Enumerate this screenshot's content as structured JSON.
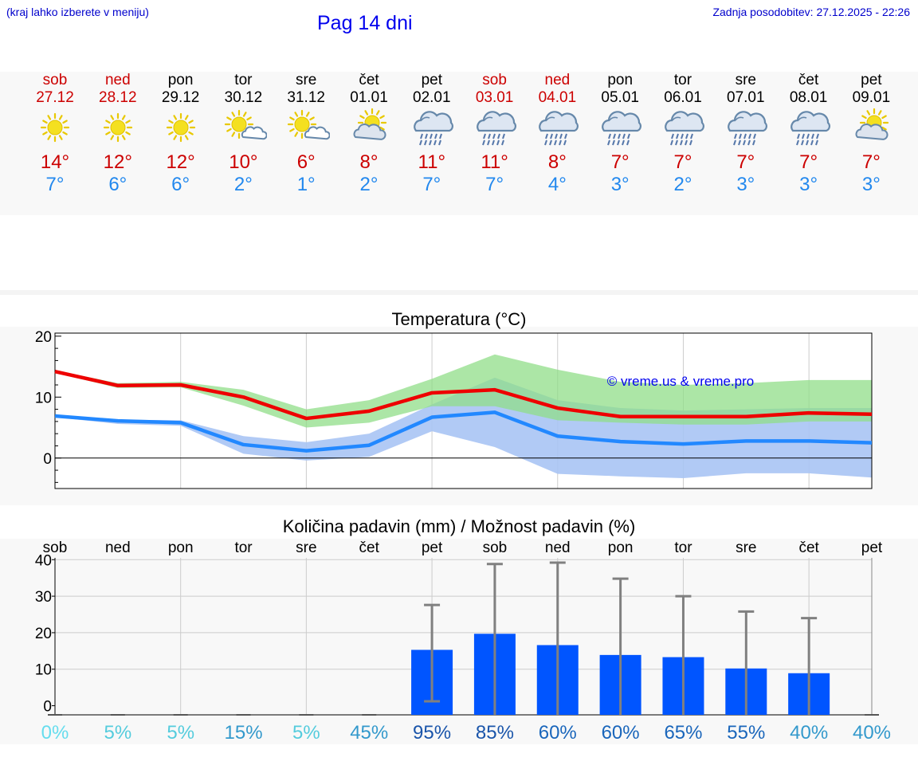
{
  "header": {
    "hint": "(kraj lahko izberete v meniju)",
    "title": "Pag 14 dni",
    "updated": "Zadnja posodobitev: 27.12.2025 - 22:26"
  },
  "days": [
    {
      "name": "sob",
      "date": "27.12",
      "weekend": true,
      "icon": "sun-icon",
      "tmax": "14°",
      "tmin": "7°"
    },
    {
      "name": "ned",
      "date": "28.12",
      "weekend": true,
      "icon": "sun-icon",
      "tmax": "12°",
      "tmin": "6°"
    },
    {
      "name": "pon",
      "date": "29.12",
      "weekend": false,
      "icon": "sun-icon",
      "tmax": "12°",
      "tmin": "6°"
    },
    {
      "name": "tor",
      "date": "30.12",
      "weekend": false,
      "icon": "sun-small-cloud-icon",
      "tmax": "10°",
      "tmin": "2°"
    },
    {
      "name": "sre",
      "date": "31.12",
      "weekend": false,
      "icon": "sun-small-cloud-icon",
      "tmax": "6°",
      "tmin": "1°"
    },
    {
      "name": "čet",
      "date": "01.01",
      "weekend": false,
      "icon": "sun-cloud-icon",
      "tmax": "8°",
      "tmin": "2°"
    },
    {
      "name": "pet",
      "date": "02.01",
      "weekend": false,
      "icon": "rain-cloud-icon",
      "tmax": "11°",
      "tmin": "7°"
    },
    {
      "name": "sob",
      "date": "03.01",
      "weekend": true,
      "icon": "rain-cloud-icon",
      "tmax": "11°",
      "tmin": "7°"
    },
    {
      "name": "ned",
      "date": "04.01",
      "weekend": true,
      "icon": "rain-cloud-icon",
      "tmax": "8°",
      "tmin": "4°"
    },
    {
      "name": "pon",
      "date": "05.01",
      "weekend": false,
      "icon": "rain-cloud-icon",
      "tmax": "7°",
      "tmin": "3°"
    },
    {
      "name": "tor",
      "date": "06.01",
      "weekend": false,
      "icon": "rain-cloud-icon",
      "tmax": "7°",
      "tmin": "2°"
    },
    {
      "name": "sre",
      "date": "07.01",
      "weekend": false,
      "icon": "rain-cloud-icon",
      "tmax": "7°",
      "tmin": "3°"
    },
    {
      "name": "čet",
      "date": "08.01",
      "weekend": false,
      "icon": "rain-cloud-icon",
      "tmax": "7°",
      "tmin": "3°"
    },
    {
      "name": "pet",
      "date": "09.01",
      "weekend": false,
      "icon": "sun-cloud-icon",
      "tmax": "7°",
      "tmin": "3°"
    }
  ],
  "colors": {
    "weekend": "#cc0000",
    "max_line": "#ee0000",
    "min_line": "#2288ff",
    "max_band": "#a8e6a0",
    "min_band": "#a8c4f4",
    "bar": "#0055ff",
    "whisker": "#808080",
    "sun": "#f4e020",
    "cloud": "#6688aa",
    "watermark": "#0000ee"
  },
  "chart_data": [
    {
      "type": "line",
      "title": "Temperatura (°C)",
      "watermark": "© vreme.us & vreme.pro",
      "ylim": [
        -5,
        20.5
      ],
      "yticks": [
        "20",
        "10",
        "0"
      ],
      "x": [
        0,
        1,
        2,
        3,
        4,
        5,
        6,
        7,
        8,
        9,
        10,
        11,
        12,
        13
      ],
      "series": [
        {
          "name": "max",
          "values": [
            14.2,
            11.9,
            12.0,
            10.0,
            6.5,
            7.7,
            10.7,
            11.2,
            8.2,
            6.8,
            6.8,
            6.8,
            7.4,
            7.2
          ],
          "band_low": [
            14.0,
            11.5,
            11.6,
            8.6,
            5.0,
            5.8,
            8.5,
            8.5,
            6.2,
            5.8,
            5.5,
            5.5,
            6.0,
            6.0
          ],
          "band_high": [
            14.4,
            12.3,
            12.5,
            11.2,
            8.0,
            9.5,
            13.0,
            17.0,
            14.5,
            12.5,
            12.0,
            12.3,
            12.8,
            12.8
          ]
        },
        {
          "name": "min",
          "values": [
            6.9,
            6.1,
            5.8,
            2.2,
            1.2,
            2.1,
            6.7,
            7.5,
            3.6,
            2.7,
            2.3,
            2.8,
            2.8,
            2.5
          ],
          "band_low": [
            6.7,
            5.6,
            5.3,
            0.7,
            -0.4,
            0.2,
            4.4,
            1.8,
            -2.6,
            -3.0,
            -3.3,
            -2.5,
            -2.5,
            -3.2
          ],
          "band_high": [
            7.1,
            6.3,
            6.2,
            3.6,
            2.6,
            4.0,
            8.8,
            13.2,
            9.5,
            8.2,
            7.8,
            8.0,
            8.2,
            8.2
          ]
        }
      ]
    },
    {
      "type": "bar",
      "title": "Količina padavin (mm) / Možnost padavin (%)",
      "categories": [
        "sob",
        "ned",
        "pon",
        "tor",
        "sre",
        "čet",
        "pet",
        "sob",
        "ned",
        "pon",
        "tor",
        "sre",
        "čet",
        "pet"
      ],
      "ylim": [
        -2.5,
        40.5
      ],
      "yticks": [
        "40",
        "30",
        "20",
        "10",
        "0"
      ],
      "values": [
        0,
        0,
        0,
        0,
        0,
        0,
        15.3,
        19.7,
        16.6,
        13.9,
        13.3,
        10.2,
        8.9,
        0
      ],
      "err_low": [
        0,
        0,
        0,
        0,
        0,
        0,
        1.2,
        0,
        0,
        0,
        0,
        0,
        0,
        0
      ],
      "err_high": [
        0,
        0,
        0,
        0,
        0,
        0,
        27.6,
        38.8,
        39.2,
        34.8,
        30.0,
        25.8,
        24.0,
        0
      ],
      "probability": [
        "0%",
        "5%",
        "5%",
        "15%",
        "5%",
        "45%",
        "95%",
        "85%",
        "60%",
        "60%",
        "65%",
        "55%",
        "40%",
        "40%"
      ],
      "probability_colors": [
        "#66ddee",
        "#55ccdd",
        "#55ccdd",
        "#3399cc",
        "#55ccdd",
        "#3399cc",
        "#1a55aa",
        "#1a55aa",
        "#1a66bb",
        "#1a66bb",
        "#1a66bb",
        "#1a66bb",
        "#3399cc",
        "#3399cc"
      ]
    }
  ]
}
